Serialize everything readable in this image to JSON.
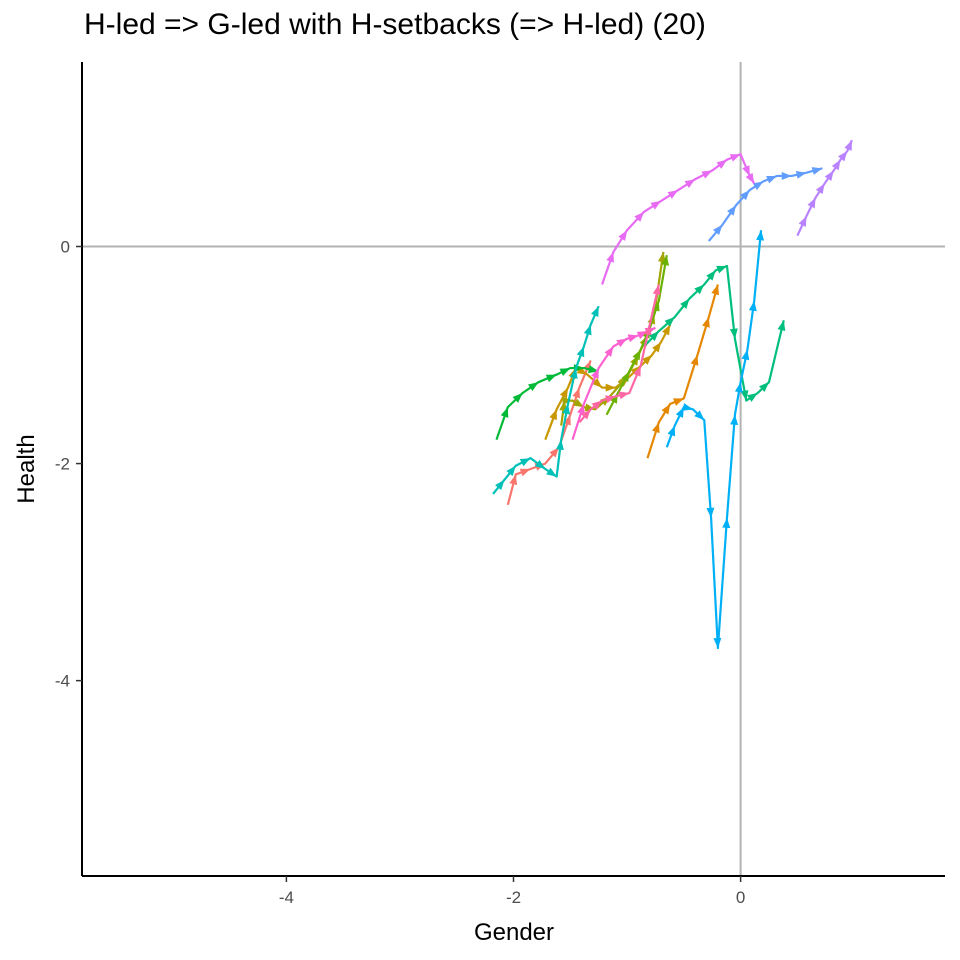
{
  "chart_data": {
    "type": "line",
    "title": "H-led => G-led with H-setbacks (=> H-led) (20)",
    "xlabel": "Gender",
    "ylabel": "Health",
    "xlim": [
      -5.8,
      1.8
    ],
    "ylim": [
      -5.8,
      1.7
    ],
    "x_ticks": [
      -4,
      -2,
      0
    ],
    "y_ticks": [
      -4,
      -2,
      0
    ],
    "x_tick_labels": [
      "-4",
      "-2",
      "0"
    ],
    "y_tick_labels": [
      "-4",
      "-2",
      "0"
    ],
    "reference_lines": {
      "x": 0,
      "y": 0,
      "color": "#b3b3b3"
    },
    "grid": false,
    "legend": "none",
    "arrows": true,
    "series": [
      {
        "color": "#F8766D",
        "x": [
          -2.05,
          -1.98,
          -1.85,
          -1.72,
          -1.6,
          -1.5,
          -1.42,
          -1.32
        ],
        "y": [
          -2.38,
          -2.1,
          -2.05,
          -2.0,
          -1.85,
          -1.55,
          -1.3,
          -1.05
        ]
      },
      {
        "color": "#E58700",
        "x": [
          -0.82,
          -0.72,
          -0.62,
          -0.5,
          -0.38,
          -0.28,
          -0.2
        ],
        "y": [
          -1.95,
          -1.62,
          -1.45,
          -1.4,
          -1.0,
          -0.65,
          -0.35
        ]
      },
      {
        "color": "#C99800",
        "x": [
          -1.72,
          -1.62,
          -1.52,
          -1.45,
          -1.35,
          -1.22,
          -1.1,
          -0.98,
          -0.88,
          -0.78,
          -0.7,
          -0.62
        ],
        "y": [
          -1.78,
          -1.5,
          -1.3,
          -1.12,
          -1.18,
          -1.3,
          -1.3,
          -1.2,
          -1.1,
          -1.0,
          -0.88,
          -0.72
        ]
      },
      {
        "color": "#A3A500",
        "x": [
          -1.58,
          -1.55,
          -1.48,
          -1.38,
          -1.28,
          -1.15,
          -1.0,
          -0.9,
          -0.82,
          -0.76,
          -0.68
        ],
        "y": [
          -1.65,
          -1.42,
          -1.42,
          -1.48,
          -1.5,
          -1.38,
          -1.2,
          -1.0,
          -0.82,
          -0.62,
          -0.05
        ]
      },
      {
        "color": "#6BB100",
        "x": [
          -1.18,
          -1.08,
          -0.98,
          -0.88,
          -0.8,
          -0.72,
          -0.65
        ],
        "y": [
          -1.55,
          -1.35,
          -1.15,
          -0.95,
          -0.75,
          -0.5,
          -0.08
        ]
      },
      {
        "color": "#00BA38",
        "x": [
          -2.15,
          -2.05,
          -1.92,
          -1.78,
          -1.62,
          -1.5,
          -1.38,
          -1.25
        ],
        "y": [
          -1.78,
          -1.48,
          -1.35,
          -1.25,
          -1.18,
          -1.12,
          -1.12,
          -1.15
        ]
      },
      {
        "color": "#00BF7D",
        "x": [
          -0.85,
          -0.72,
          -0.58,
          -0.45,
          -0.32,
          -0.22,
          -0.12,
          -0.05,
          0.05,
          0.15,
          0.25,
          0.38
        ],
        "y": [
          -0.92,
          -0.78,
          -0.65,
          -0.48,
          -0.35,
          -0.22,
          -0.18,
          -0.85,
          -1.42,
          -1.35,
          -1.25,
          -0.68
        ]
      },
      {
        "color": "#00C0B8",
        "x": [
          -2.18,
          -2.08,
          -1.98,
          -1.85,
          -1.72,
          -1.62,
          -1.58,
          -1.52,
          -1.45,
          -1.38,
          -1.32,
          -1.25
        ],
        "y": [
          -2.28,
          -2.15,
          -2.02,
          -1.95,
          -2.05,
          -2.12,
          -1.78,
          -1.45,
          -1.12,
          -0.92,
          -0.72,
          -0.55
        ]
      },
      {
        "color": "#00B0F6",
        "x": [
          -0.65,
          -0.58,
          -0.5,
          -0.42,
          -0.32,
          -0.26,
          -0.2,
          -0.12,
          -0.05,
          0.0,
          0.06,
          0.12,
          0.18
        ],
        "y": [
          -1.85,
          -1.65,
          -1.48,
          -1.5,
          -1.6,
          -2.5,
          -3.7,
          -2.5,
          -1.55,
          -1.25,
          -0.95,
          -0.5,
          0.15
        ]
      },
      {
        "color": "#619CFF",
        "x": [
          -0.28,
          -0.16,
          -0.04,
          0.08,
          0.2,
          0.32,
          0.45,
          0.58,
          0.72
        ],
        "y": [
          0.05,
          0.2,
          0.38,
          0.52,
          0.6,
          0.65,
          0.65,
          0.68,
          0.72
        ]
      },
      {
        "color": "#B983FF",
        "x": [
          0.5,
          0.58,
          0.66,
          0.74,
          0.82,
          0.88,
          0.94,
          0.98
        ],
        "y": [
          0.1,
          0.28,
          0.45,
          0.58,
          0.7,
          0.8,
          0.88,
          0.98
        ]
      },
      {
        "color": "#E76BF3",
        "x": [
          -1.22,
          -1.12,
          -1.0,
          -0.85,
          -0.7,
          -0.55,
          -0.4,
          -0.25,
          -0.12,
          0.0,
          0.08,
          0.12
        ],
        "y": [
          -0.35,
          -0.05,
          0.15,
          0.32,
          0.42,
          0.52,
          0.62,
          0.7,
          0.8,
          0.85,
          0.65,
          0.58
        ]
      },
      {
        "color": "#FD61D1",
        "x": [
          -1.48,
          -1.38,
          -1.25,
          -1.12,
          -1.0,
          -0.9,
          -0.82,
          -0.75
        ],
        "y": [
          -1.78,
          -1.45,
          -1.12,
          -0.92,
          -0.85,
          -0.82,
          -0.78,
          -0.75
        ]
      },
      {
        "color": "#FF67A4",
        "x": [
          -1.42,
          -1.32,
          -1.22,
          -1.1,
          -0.98,
          -0.88,
          -0.8,
          -0.72
        ],
        "y": [
          -1.62,
          -1.5,
          -1.42,
          -1.38,
          -1.35,
          -1.1,
          -0.72,
          -0.35
        ]
      }
    ]
  }
}
